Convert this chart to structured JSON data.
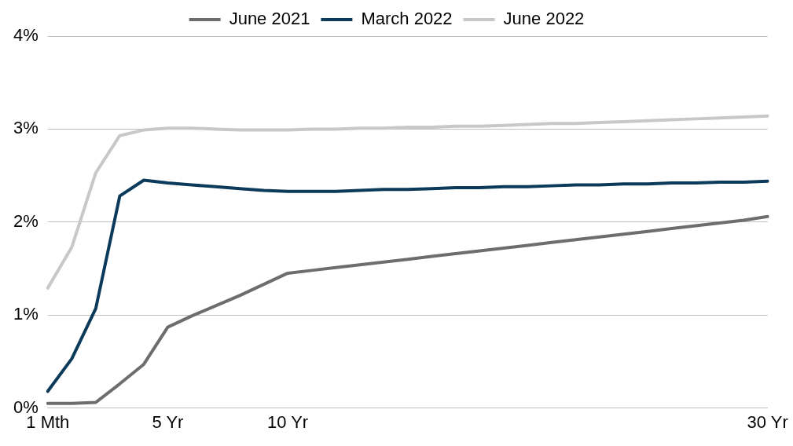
{
  "chart_data": {
    "type": "line",
    "categories": [
      "1 Mth",
      null,
      null,
      null,
      null,
      "5 Yr",
      null,
      null,
      null,
      null,
      "10 Yr",
      null,
      null,
      null,
      null,
      null,
      null,
      null,
      null,
      null,
      null,
      null,
      null,
      null,
      null,
      null,
      null,
      null,
      null,
      null,
      "30 Yr"
    ],
    "series": [
      {
        "name": "June 2021",
        "color": "#6d6d6d",
        "values": [
          0.05,
          0.05,
          0.06,
          0.26,
          0.47,
          0.87,
          0.99,
          1.1,
          1.21,
          1.33,
          1.45,
          1.48,
          1.51,
          1.54,
          1.57,
          1.6,
          1.63,
          1.66,
          1.69,
          1.72,
          1.75,
          1.78,
          1.81,
          1.84,
          1.87,
          1.9,
          1.93,
          1.96,
          1.99,
          2.02,
          2.06
        ]
      },
      {
        "name": "March 2022",
        "color": "#0b3a5a",
        "values": [
          0.18,
          0.53,
          1.07,
          2.28,
          2.45,
          2.42,
          2.4,
          2.38,
          2.36,
          2.34,
          2.33,
          2.33,
          2.33,
          2.34,
          2.35,
          2.35,
          2.36,
          2.37,
          2.37,
          2.38,
          2.38,
          2.39,
          2.4,
          2.4,
          2.41,
          2.41,
          2.42,
          2.42,
          2.43,
          2.43,
          2.44
        ]
      },
      {
        "name": "June 2022",
        "color": "#c8c8c8",
        "values": [
          1.29,
          1.73,
          2.53,
          2.93,
          2.99,
          3.01,
          3.01,
          3.0,
          2.99,
          2.99,
          2.99,
          3.0,
          3.0,
          3.01,
          3.01,
          3.02,
          3.02,
          3.03,
          3.03,
          3.04,
          3.05,
          3.06,
          3.06,
          3.07,
          3.08,
          3.09,
          3.1,
          3.11,
          3.12,
          3.13,
          3.14
        ]
      }
    ],
    "ylim": [
      0,
      4
    ],
    "yticks": [
      {
        "value": 0,
        "label": "0%"
      },
      {
        "value": 1,
        "label": "1%"
      },
      {
        "value": 2,
        "label": "2%"
      },
      {
        "value": 3,
        "label": "3%"
      },
      {
        "value": 4,
        "label": "4%"
      }
    ],
    "grid": "y",
    "legend": "top",
    "marker": "none",
    "line_style": "solid"
  }
}
